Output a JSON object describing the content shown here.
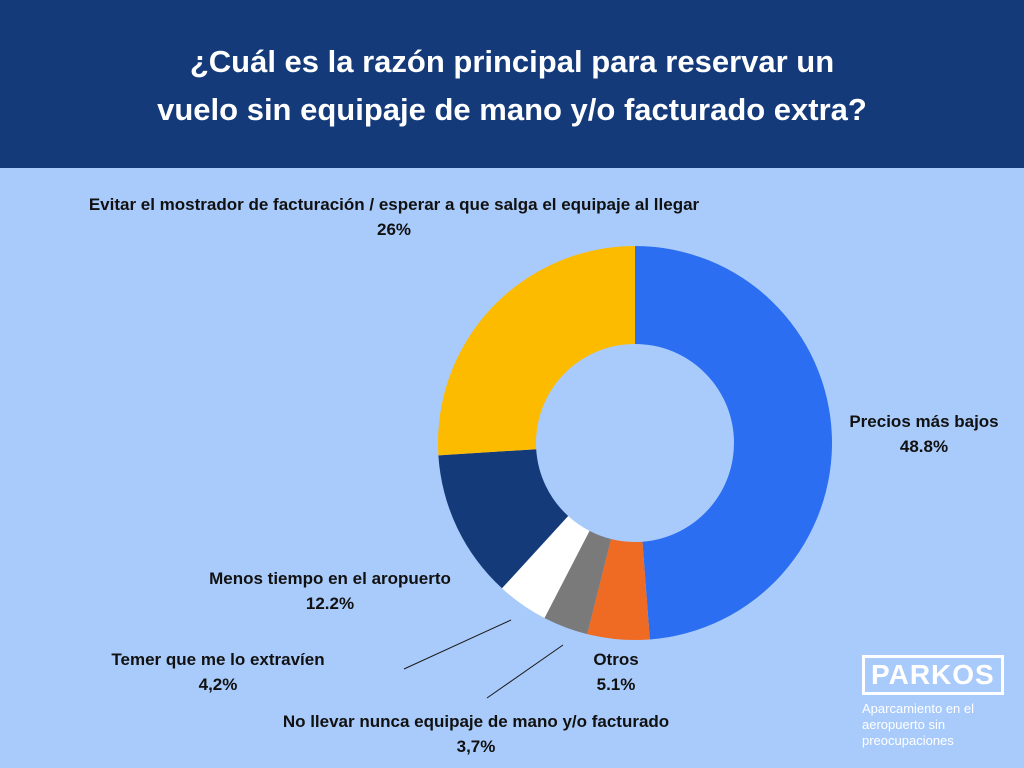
{
  "header": {
    "title_line1": "¿Cuál es la razón principal para reservar un",
    "title_line2": "vuelo sin equipaje de mano y/o facturado extra?"
  },
  "colors": {
    "header_bg": "#143a7a",
    "page_bg": "#a9cbfb",
    "precios": "#2b6ef2",
    "otros": "#ef6b24",
    "no_llevar": "#7a7a7a",
    "temer": "#ffffff",
    "menos_tiempo": "#143a7a",
    "evitar": "#fdbb00",
    "leader_line": "#1a1a1a"
  },
  "chart_data": {
    "type": "pie",
    "variant": "donut",
    "title": "¿Cuál es la razón principal para reservar un vuelo sin equipaje de mano y/o facturado extra?",
    "slices": [
      {
        "label": "Precios más bajos",
        "value_label": "48.8%",
        "value": 48.8,
        "color": "#2b6ef2"
      },
      {
        "label": "Otros",
        "value_label": "5.1%",
        "value": 5.1,
        "color": "#ef6b24"
      },
      {
        "label": "No llevar nunca equipaje de mano y/o facturado",
        "value_label": "3,7%",
        "value": 3.7,
        "color": "#7a7a7a"
      },
      {
        "label": "Temer que me lo extravíen",
        "value_label": "4,2%",
        "value": 4.2,
        "color": "#ffffff"
      },
      {
        "label": "Menos tiempo en el aropuerto",
        "value_label": "12.2%",
        "value": 12.2,
        "color": "#143a7a"
      },
      {
        "label": "Evitar el mostrador de facturación / esperar a que salga el equipaje al llegar",
        "value_label": "26%",
        "value": 26,
        "color": "#fdbb00"
      }
    ]
  },
  "brand": {
    "logo": "PARKOS",
    "tagline_line1": "Aparcamiento en el",
    "tagline_line2": "aeropuerto sin",
    "tagline_line3": "preocupaciones"
  }
}
